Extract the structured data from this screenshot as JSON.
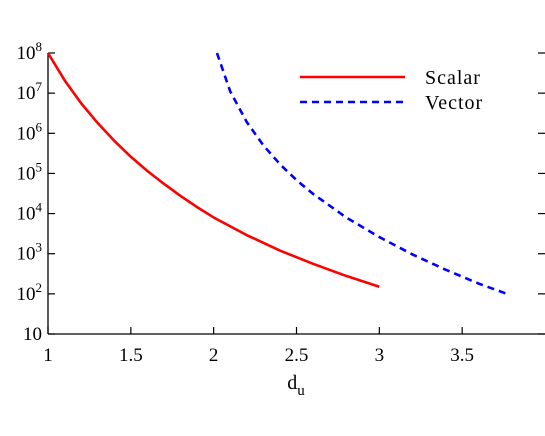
{
  "chart_data": {
    "type": "line",
    "xlabel": "d",
    "xlabel_sub": "u",
    "ylabel": "",
    "xlim": [
      1,
      4
    ],
    "ylim_log10": [
      1,
      8
    ],
    "y_scale": "log",
    "x_ticks": [
      {
        "value": 1,
        "label": "1"
      },
      {
        "value": 1.5,
        "label": "1.5"
      },
      {
        "value": 2,
        "label": "2"
      },
      {
        "value": 2.5,
        "label": "2.5"
      },
      {
        "value": 3,
        "label": "3"
      },
      {
        "value": 3.5,
        "label": "3.5"
      }
    ],
    "y_ticks": [
      {
        "exp": 1,
        "base": "10",
        "sup": ""
      },
      {
        "exp": 2,
        "base": "10",
        "sup": "2"
      },
      {
        "exp": 3,
        "base": "10",
        "sup": "3"
      },
      {
        "exp": 4,
        "base": "10",
        "sup": "4"
      },
      {
        "exp": 5,
        "base": "10",
        "sup": "5"
      },
      {
        "exp": 6,
        "base": "10",
        "sup": "6"
      },
      {
        "exp": 7,
        "base": "10",
        "sup": "7"
      },
      {
        "exp": 8,
        "base": "10",
        "sup": "8"
      }
    ],
    "legend_position": "top-right",
    "series": [
      {
        "name": "Scalar",
        "style": "solid",
        "color": "#ff0000",
        "points": [
          [
            1.0,
            100000000
          ],
          [
            1.1,
            21000000
          ],
          [
            1.2,
            5600000
          ],
          [
            1.3,
            1800000
          ],
          [
            1.4,
            650000
          ],
          [
            1.5,
            260000
          ],
          [
            1.6,
            115000
          ],
          [
            1.7,
            55000
          ],
          [
            1.8,
            27500
          ],
          [
            1.9,
            14500
          ],
          [
            2.0,
            8000
          ],
          [
            2.2,
            2900
          ],
          [
            2.4,
            1200
          ],
          [
            2.6,
            560
          ],
          [
            2.8,
            280
          ],
          [
            3.0,
            150
          ]
        ]
      },
      {
        "name": "Vector",
        "style": "dashed",
        "color": "#0000ff",
        "points": [
          [
            2.02,
            100000000
          ],
          [
            2.1,
            11000000
          ],
          [
            2.2,
            1900000
          ],
          [
            2.3,
            500000
          ],
          [
            2.4,
            170000
          ],
          [
            2.5,
            68000
          ],
          [
            2.6,
            31000
          ],
          [
            2.8,
            8000
          ],
          [
            3.0,
            2600
          ],
          [
            3.2,
            960
          ],
          [
            3.4,
            400
          ],
          [
            3.6,
            180
          ],
          [
            3.77,
            100
          ]
        ]
      }
    ]
  }
}
